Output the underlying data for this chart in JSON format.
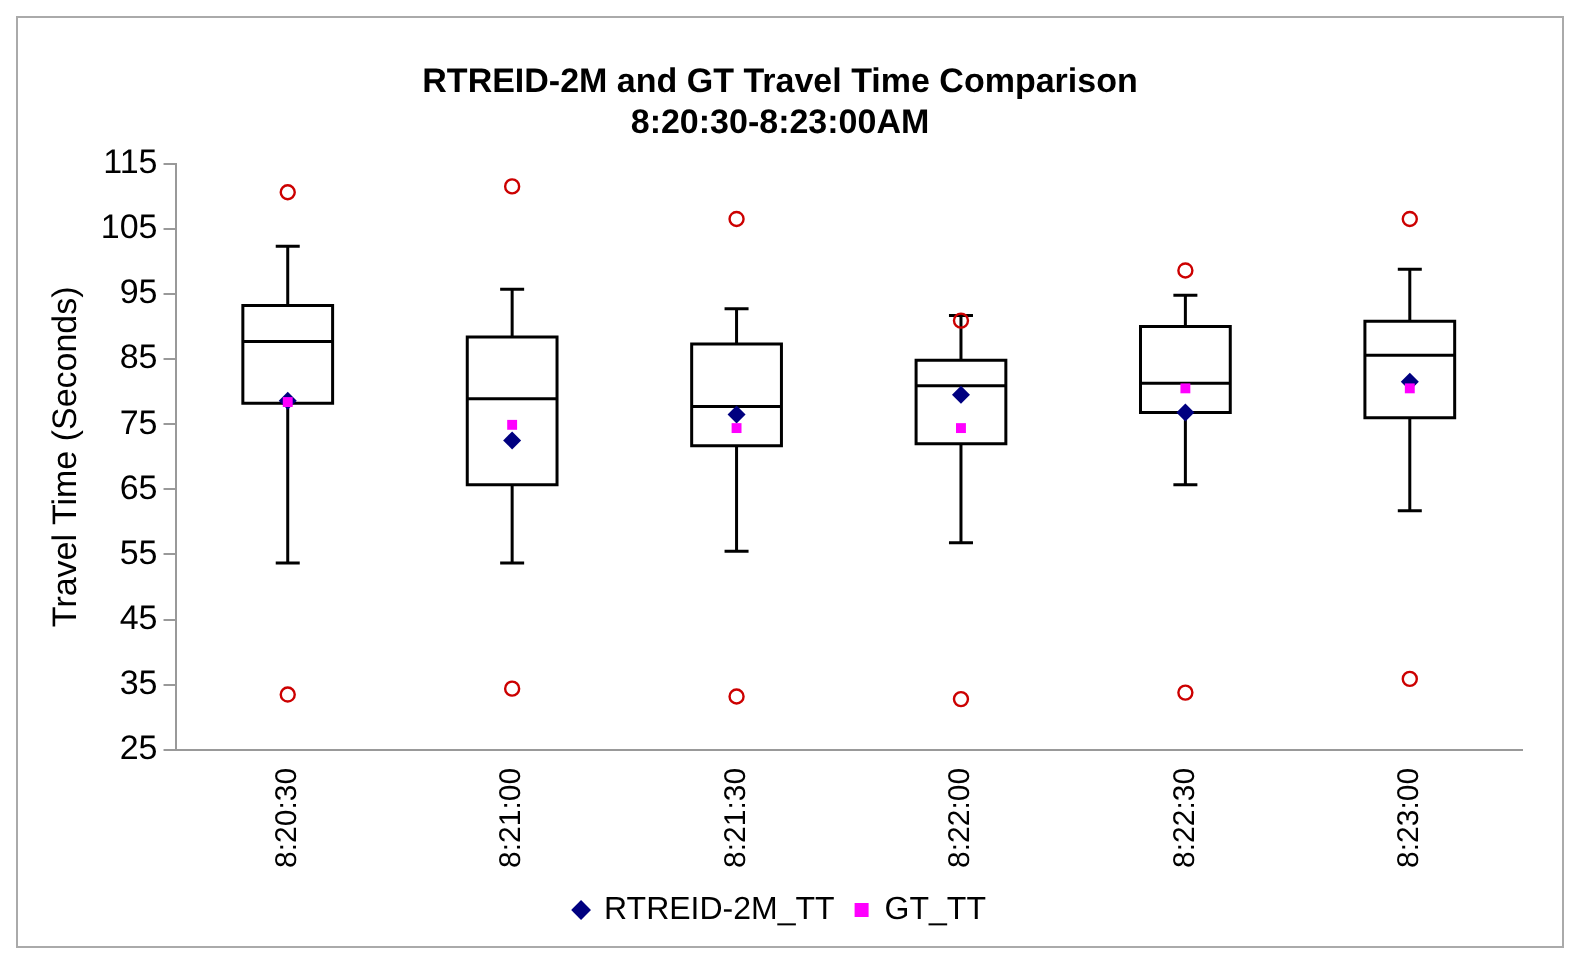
{
  "chart_data": {
    "type": "box",
    "title": "RTREID-2M and GT Travel Time Comparison\n8:20:30-8:23:00AM",
    "ylabel": "Travel Time (Seconds)",
    "categories": [
      "8:20:30",
      "8:21:00",
      "8:21:30",
      "8:22:00",
      "8:22:30",
      "8:23:00"
    ],
    "boxes": [
      {
        "low": 53.7,
        "q1": 78.2,
        "median": 87.7,
        "q3": 93.2,
        "high": 102.3,
        "outliers": [
          110.6,
          33.5
        ]
      },
      {
        "low": 53.7,
        "q1": 65.7,
        "median": 78.9,
        "q3": 88.4,
        "high": 95.7,
        "outliers": [
          111.5,
          34.4
        ]
      },
      {
        "low": 55.5,
        "q1": 71.7,
        "median": 77.7,
        "q3": 87.3,
        "high": 92.7,
        "outliers": [
          106.5,
          33.2
        ]
      },
      {
        "low": 56.8,
        "q1": 72.0,
        "median": 80.9,
        "q3": 84.8,
        "high": 91.7,
        "outliers": [
          90.9,
          32.8
        ]
      },
      {
        "low": 65.7,
        "q1": 76.8,
        "median": 81.3,
        "q3": 90.0,
        "high": 94.8,
        "outliers": [
          98.6,
          33.8
        ]
      },
      {
        "low": 61.7,
        "q1": 76.0,
        "median": 85.6,
        "q3": 90.8,
        "high": 98.8,
        "outliers": [
          106.5,
          35.9
        ]
      }
    ],
    "series": [
      {
        "name": "RTREID-2M_TT",
        "type": "scatter",
        "marker": "diamond",
        "color": "#000080",
        "x": [
          "8:20:30",
          "8:21:00",
          "8:21:30",
          "8:22:00",
          "8:22:30",
          "8:23:00"
        ],
        "values": [
          78.6,
          72.5,
          76.5,
          79.5,
          76.8,
          81.5
        ]
      },
      {
        "name": "GT_TT",
        "type": "scatter",
        "marker": "square",
        "color": "#ff00ff",
        "x": [
          "8:20:30",
          "8:21:00",
          "8:21:30",
          "8:22:00",
          "8:22:30",
          "8:23:00"
        ],
        "values": [
          78.4,
          74.9,
          74.4,
          74.4,
          80.5,
          80.5
        ]
      }
    ],
    "ylim": [
      25,
      115
    ],
    "yticks": [
      25,
      35,
      45,
      55,
      65,
      75,
      85,
      95,
      105,
      115
    ],
    "grid": false,
    "legend": "bottom"
  }
}
